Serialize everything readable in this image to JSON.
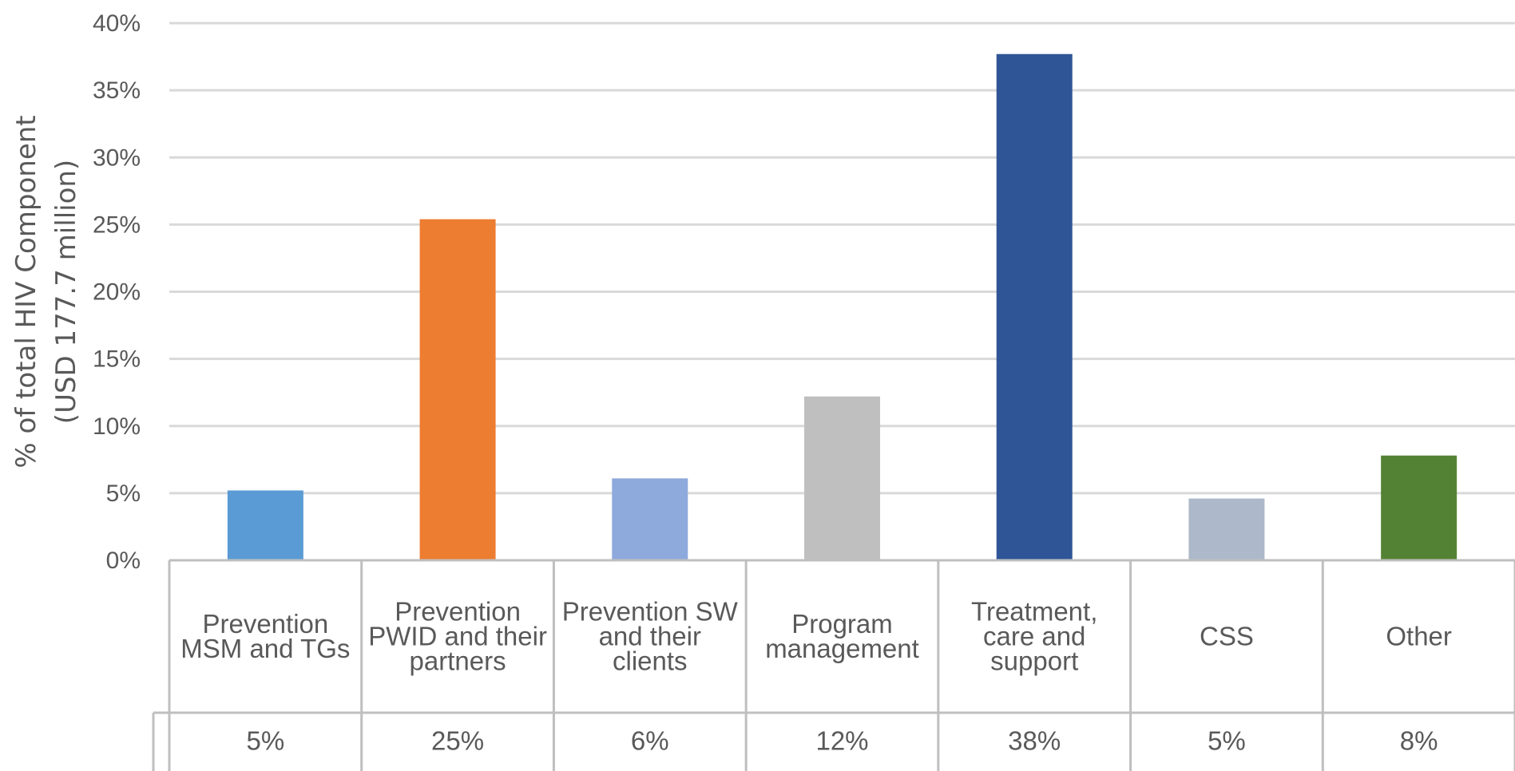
{
  "chart_data": {
    "type": "bar",
    "title": "",
    "ylabel_lines": [
      "% of total HIV Component",
      "(USD 177.7 million)"
    ],
    "xlabel": "",
    "ylim": [
      0,
      40
    ],
    "y_ticks": [
      "0%",
      "5%",
      "10%",
      "15%",
      "20%",
      "25%",
      "30%",
      "35%",
      "40%"
    ],
    "grid": true,
    "categories": [
      [
        "Prevention",
        "MSM and TGs"
      ],
      [
        "Prevention",
        "PWID and their",
        "partners"
      ],
      [
        "Prevention SW",
        "and their",
        "clients"
      ],
      [
        "Program",
        "management"
      ],
      [
        "Treatment,",
        "care and",
        "support"
      ],
      [
        "CSS"
      ],
      [
        "Other"
      ]
    ],
    "values": [
      5.2,
      25.4,
      6.1,
      12.2,
      37.7,
      4.6,
      7.8
    ],
    "data_table_labels": [
      "5%",
      "25%",
      "6%",
      "12%",
      "38%",
      "5%",
      "8%"
    ],
    "colors": [
      "#5B9BD5",
      "#ED7D31",
      "#8EA9DB",
      "#BFBFBF",
      "#2F5597",
      "#ADB9CA",
      "#548235"
    ]
  }
}
